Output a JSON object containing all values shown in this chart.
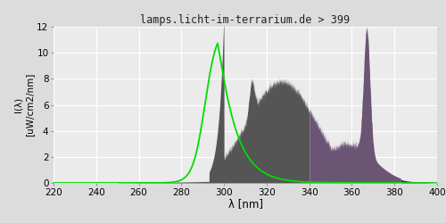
{
  "title": "lamps.licht-im-terrarium.de > 399",
  "xlabel": "λ [nm]",
  "ylabel_line1": "I(λ)",
  "ylabel_line2": "[uW/cm2/nm]",
  "xlim": [
    220,
    400
  ],
  "ylim": [
    0,
    12
  ],
  "yticks": [
    0,
    2,
    4,
    6,
    8,
    10,
    12
  ],
  "xticks": [
    220,
    240,
    260,
    280,
    300,
    320,
    340,
    360,
    380,
    400
  ],
  "bg_color": "#dcdcdc",
  "plot_bg_color": "#ebebeb",
  "grid_color": "#ffffff",
  "color_uvb": "#555555",
  "color_uva": "#6b5575",
  "color_vis": "#880099",
  "green_color": "#00dd00",
  "boundary_uvb_uva": 340,
  "boundary_uva_vis": 383
}
